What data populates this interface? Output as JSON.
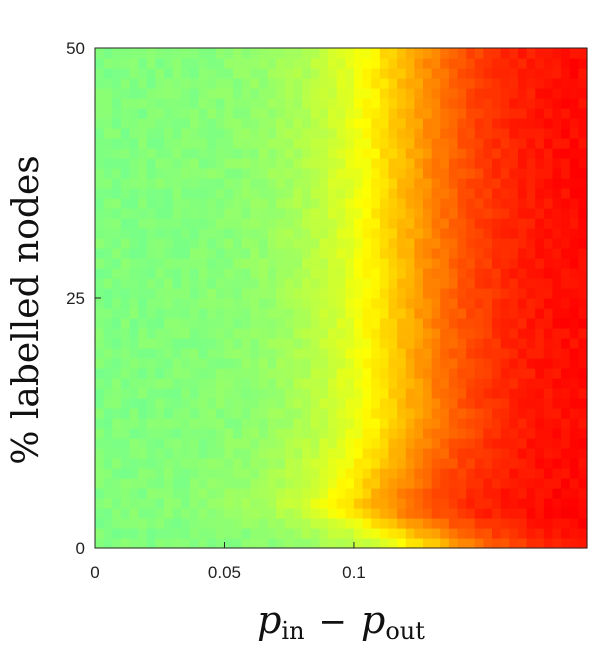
{
  "chart_data": {
    "type": "heatmap",
    "title": "",
    "xlabel_main": "p",
    "xlabel_sub1": "in",
    "xlabel_op": "−",
    "xlabel_sub2": "out",
    "ylabel": "% labelled nodes",
    "xlim": [
      0,
      0.19
    ],
    "ylim": [
      0,
      50
    ],
    "x_ticks": [
      0,
      0.05,
      0.1
    ],
    "x_tick_labels": [
      "0",
      "0.05",
      "0.1"
    ],
    "y_ticks": [
      0,
      25,
      50
    ],
    "y_tick_labels": [
      "0",
      "25",
      "50"
    ],
    "grid": false,
    "colormap": "jet (upper half: dark red → red → orange → yellow → green)",
    "colors": [
      "#a50000",
      "#ff0000",
      "#ff8000",
      "#ffff00",
      "#7fff7f"
    ],
    "description_of_values": "value rises with x; the transition to high values occurs at smaller x near y=0 and at x≈0.12 for y≥10"
  }
}
